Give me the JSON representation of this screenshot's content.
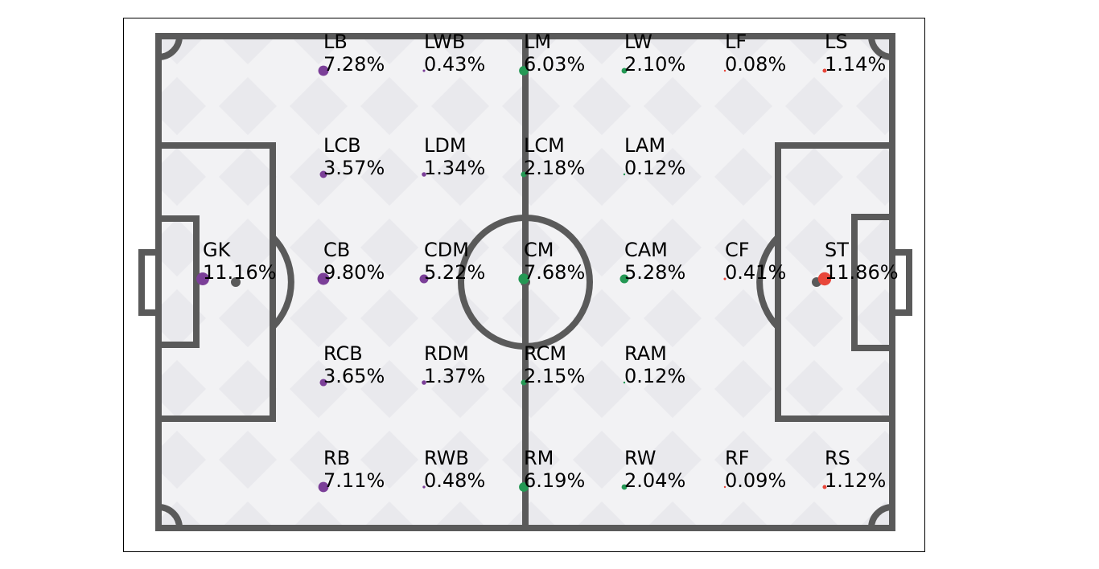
{
  "chart_data": {
    "type": "scatter",
    "colors": {
      "defense": "#7b3f98",
      "midfield": "#249854",
      "attack": "#e8463a",
      "pitch_lines": "#5a5a5a",
      "pitch_fill": "#f2f2f4",
      "pitch_pattern": "#e9e9ed",
      "ball": "#5a5a5a"
    },
    "positions": [
      {
        "label": "GK",
        "pct": "11.16%",
        "value": 11.16,
        "group": "defense",
        "x": 0,
        "y": 2
      },
      {
        "label": "LB",
        "pct": "7.28%",
        "value": 7.28,
        "group": "defense",
        "x": 1,
        "y": 0
      },
      {
        "label": "LCB",
        "pct": "3.57%",
        "value": 3.57,
        "group": "defense",
        "x": 1,
        "y": 1
      },
      {
        "label": "CB",
        "pct": "9.80%",
        "value": 9.8,
        "group": "defense",
        "x": 1,
        "y": 2
      },
      {
        "label": "RCB",
        "pct": "3.65%",
        "value": 3.65,
        "group": "defense",
        "x": 1,
        "y": 3
      },
      {
        "label": "RB",
        "pct": "7.11%",
        "value": 7.11,
        "group": "defense",
        "x": 1,
        "y": 4
      },
      {
        "label": "LWB",
        "pct": "0.43%",
        "value": 0.43,
        "group": "defense",
        "x": 2,
        "y": 0
      },
      {
        "label": "LDM",
        "pct": "1.34%",
        "value": 1.34,
        "group": "defense",
        "x": 2,
        "y": 1
      },
      {
        "label": "CDM",
        "pct": "5.22%",
        "value": 5.22,
        "group": "defense",
        "x": 2,
        "y": 2
      },
      {
        "label": "RDM",
        "pct": "1.37%",
        "value": 1.37,
        "group": "defense",
        "x": 2,
        "y": 3
      },
      {
        "label": "RWB",
        "pct": "0.48%",
        "value": 0.48,
        "group": "defense",
        "x": 2,
        "y": 4
      },
      {
        "label": "LM",
        "pct": "6.03%",
        "value": 6.03,
        "group": "midfield",
        "x": 3,
        "y": 0
      },
      {
        "label": "LCM",
        "pct": "2.18%",
        "value": 2.18,
        "group": "midfield",
        "x": 3,
        "y": 1
      },
      {
        "label": "CM",
        "pct": "7.68%",
        "value": 7.68,
        "group": "midfield",
        "x": 3,
        "y": 2
      },
      {
        "label": "RCM",
        "pct": "2.15%",
        "value": 2.15,
        "group": "midfield",
        "x": 3,
        "y": 3
      },
      {
        "label": "RM",
        "pct": "6.19%",
        "value": 6.19,
        "group": "midfield",
        "x": 3,
        "y": 4
      },
      {
        "label": "LW",
        "pct": "2.10%",
        "value": 2.1,
        "group": "midfield",
        "x": 4,
        "y": 0
      },
      {
        "label": "LAM",
        "pct": "0.12%",
        "value": 0.12,
        "group": "midfield",
        "x": 4,
        "y": 1
      },
      {
        "label": "CAM",
        "pct": "5.28%",
        "value": 5.28,
        "group": "midfield",
        "x": 4,
        "y": 2
      },
      {
        "label": "RAM",
        "pct": "0.12%",
        "value": 0.12,
        "group": "midfield",
        "x": 4,
        "y": 3
      },
      {
        "label": "RW",
        "pct": "2.04%",
        "value": 2.04,
        "group": "midfield",
        "x": 4,
        "y": 4
      },
      {
        "label": "LF",
        "pct": "0.08%",
        "value": 0.08,
        "group": "attack",
        "x": 5,
        "y": 0
      },
      {
        "label": "CF",
        "pct": "0.41%",
        "value": 0.41,
        "group": "attack",
        "x": 5,
        "y": 2
      },
      {
        "label": "RF",
        "pct": "0.09%",
        "value": 0.09,
        "group": "attack",
        "x": 5,
        "y": 4
      },
      {
        "label": "LS",
        "pct": "1.14%",
        "value": 1.14,
        "group": "attack",
        "x": 6,
        "y": 0
      },
      {
        "label": "ST",
        "pct": "11.86%",
        "value": 11.86,
        "group": "attack",
        "x": 6,
        "y": 2
      },
      {
        "label": "RS",
        "pct": "1.12%",
        "value": 1.12,
        "group": "attack",
        "x": 6,
        "y": 4
      }
    ]
  }
}
